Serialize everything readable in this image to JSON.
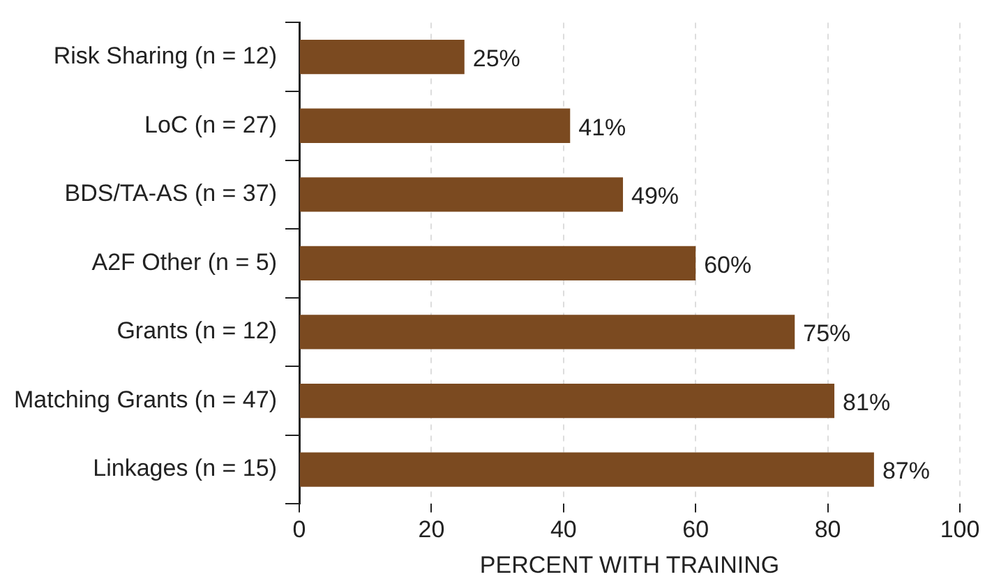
{
  "chart_data": {
    "type": "bar",
    "orientation": "horizontal",
    "xlabel": "PERCENT WITH TRAINING",
    "categories": [
      "Risk Sharing (n = 12)",
      "LoC (n = 27)",
      "BDS/TA-AS (n = 37)",
      "A2F Other (n = 5)",
      "Grants (n = 12)",
      "Matching Grants (n = 47)",
      "Linkages (n = 15)"
    ],
    "values": [
      25,
      41,
      49,
      60,
      75,
      81,
      87
    ],
    "value_labels": [
      "25%",
      "41%",
      "49%",
      "60%",
      "75%",
      "81%",
      "87%"
    ],
    "color": "#7b4a20",
    "xlim": [
      0,
      100
    ],
    "xticks": [
      0,
      20,
      40,
      60,
      80,
      100
    ],
    "grid": "x",
    "legend": false
  }
}
